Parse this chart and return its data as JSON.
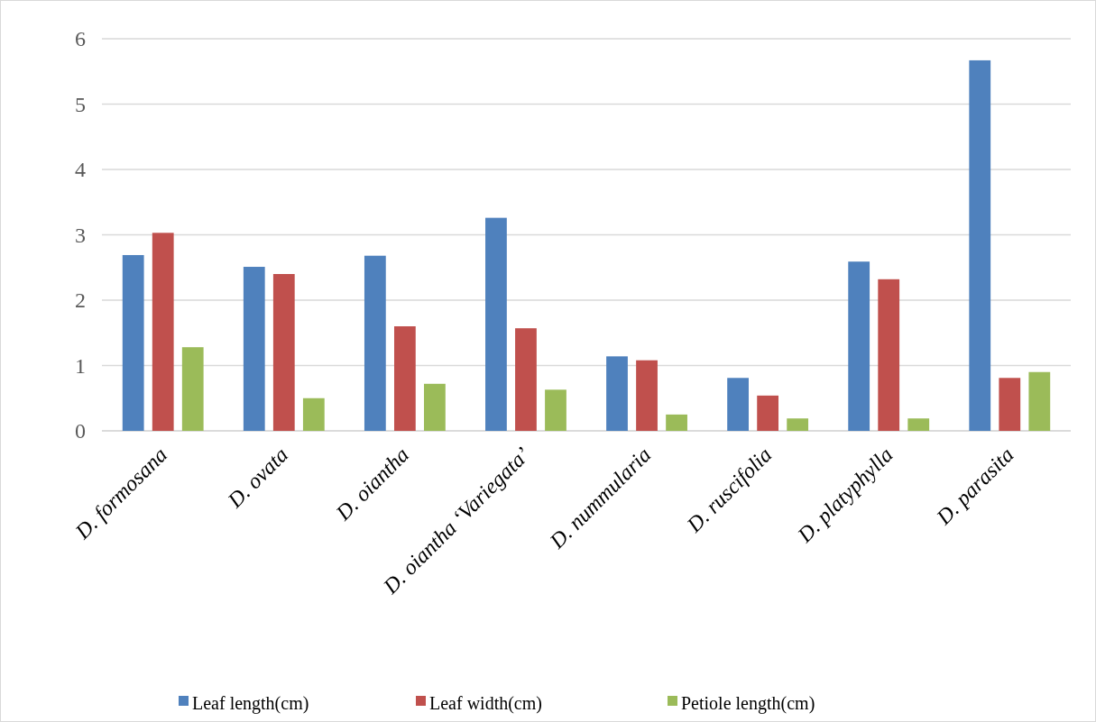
{
  "chart_data": {
    "type": "bar",
    "categories": [
      "D. formosana",
      "D. ovata",
      "D. oiantha",
      "D. oiantha ‘Variegata’",
      "D. nummularia",
      "D. ruscifolia",
      "D. platyphylla",
      "D. parasita"
    ],
    "series": [
      {
        "name": "Leaf length(cm)",
        "color": "#4f81bd",
        "values": [
          2.69,
          2.51,
          2.68,
          3.26,
          1.14,
          0.81,
          2.59,
          5.67
        ]
      },
      {
        "name": "Leaf width(cm)",
        "color": "#c0504d",
        "values": [
          3.03,
          2.4,
          1.6,
          1.57,
          1.08,
          0.54,
          2.32,
          0.81
        ]
      },
      {
        "name": "Petiole length(cm)",
        "color": "#9bbb59",
        "values": [
          1.28,
          0.5,
          0.72,
          0.63,
          0.25,
          0.19,
          0.19,
          0.9
        ]
      }
    ],
    "ylim": [
      0,
      6
    ],
    "yticks": [
      0,
      1,
      2,
      3,
      4,
      5,
      6
    ],
    "grid": "y",
    "legend": "bottom"
  }
}
